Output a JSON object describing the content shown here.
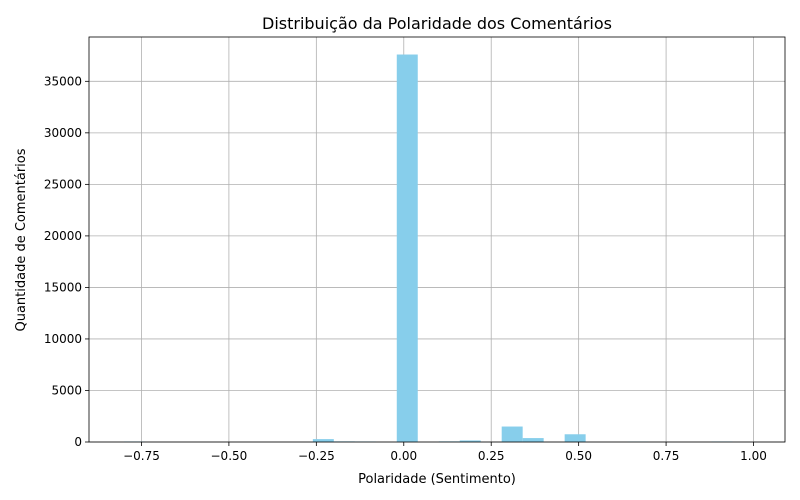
{
  "chart_data": {
    "type": "bar",
    "title": "Distribuição da Polaridade dos Comentários",
    "xlabel": "Polaridade (Sentimento)",
    "ylabel": "Quantidade de Comentários",
    "xlim": [
      -0.9,
      1.09
    ],
    "ylim": [
      0,
      39300
    ],
    "grid": true,
    "bar_color": "#87CEEB",
    "bin_width": 0.06,
    "x_ticks": [
      -0.75,
      -0.5,
      -0.25,
      0.0,
      0.25,
      0.5,
      0.75,
      1.0
    ],
    "x_tick_labels": [
      "−0.75",
      "−0.50",
      "−0.25",
      "0.00",
      "0.25",
      "0.50",
      "0.75",
      "1.00"
    ],
    "y_ticks": [
      0,
      5000,
      10000,
      15000,
      20000,
      25000,
      30000,
      35000
    ],
    "y_tick_labels": [
      "0",
      "5000",
      "10000",
      "15000",
      "20000",
      "25000",
      "30000",
      "35000"
    ],
    "bins": [
      {
        "start": -0.8,
        "value": 50
      },
      {
        "start": -0.26,
        "value": 280
      },
      {
        "start": -0.2,
        "value": 60
      },
      {
        "start": -0.14,
        "value": 50
      },
      {
        "start": -0.02,
        "value": 37600
      },
      {
        "start": 0.1,
        "value": 60
      },
      {
        "start": 0.16,
        "value": 150
      },
      {
        "start": 0.28,
        "value": 1500
      },
      {
        "start": 0.34,
        "value": 380
      },
      {
        "start": 0.46,
        "value": 750
      },
      {
        "start": 0.64,
        "value": 40
      },
      {
        "start": 0.88,
        "value": 50
      }
    ]
  }
}
